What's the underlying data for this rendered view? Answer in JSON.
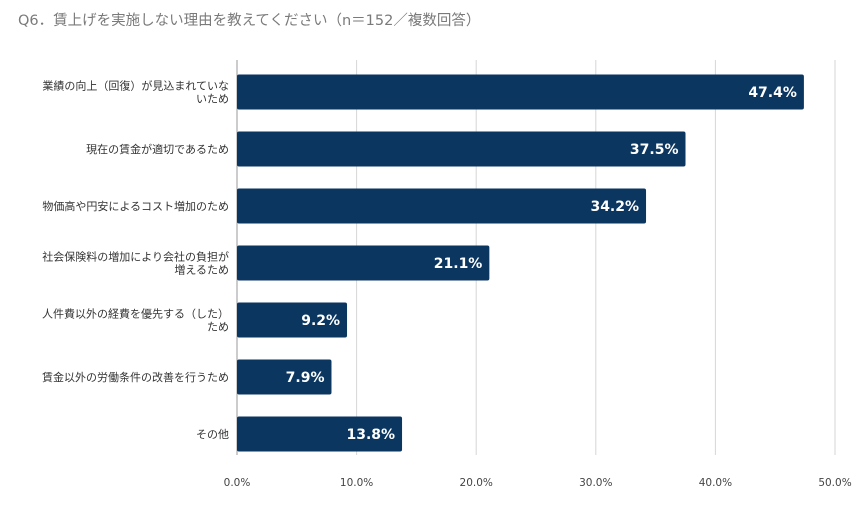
{
  "chart_data": {
    "type": "bar",
    "orientation": "horizontal",
    "title": "Q6．賃上げを実施しない理由を教えてください（n＝152／複数回答）",
    "categories": [
      [
        "業績の向上（回復）が見込まれていな",
        "いため"
      ],
      [
        "現在の賃金が適切であるため"
      ],
      [
        "物価高や円安によるコスト増加のため"
      ],
      [
        "社会保険料の増加により会社の負担が",
        "増えるため"
      ],
      [
        "人件費以外の経費を優先する（した）",
        "ため"
      ],
      [
        "賃金以外の労働条件の改善を行うため"
      ],
      [
        "その他"
      ]
    ],
    "values": [
      47.4,
      37.5,
      34.2,
      21.1,
      9.2,
      7.9,
      13.8
    ],
    "value_labels": [
      "47.4%",
      "37.5%",
      "34.2%",
      "21.1%",
      "9.2%",
      "7.9%",
      "13.8%"
    ],
    "xlim": [
      0,
      50
    ],
    "ticks": [
      0,
      10,
      20,
      30,
      40,
      50
    ],
    "tick_labels": [
      "0.0%",
      "10.0%",
      "20.0%",
      "30.0%",
      "40.0%",
      "50.0%"
    ],
    "grid": true,
    "bar_color": "#0b3660",
    "grid_color": "#d6d6d6"
  }
}
